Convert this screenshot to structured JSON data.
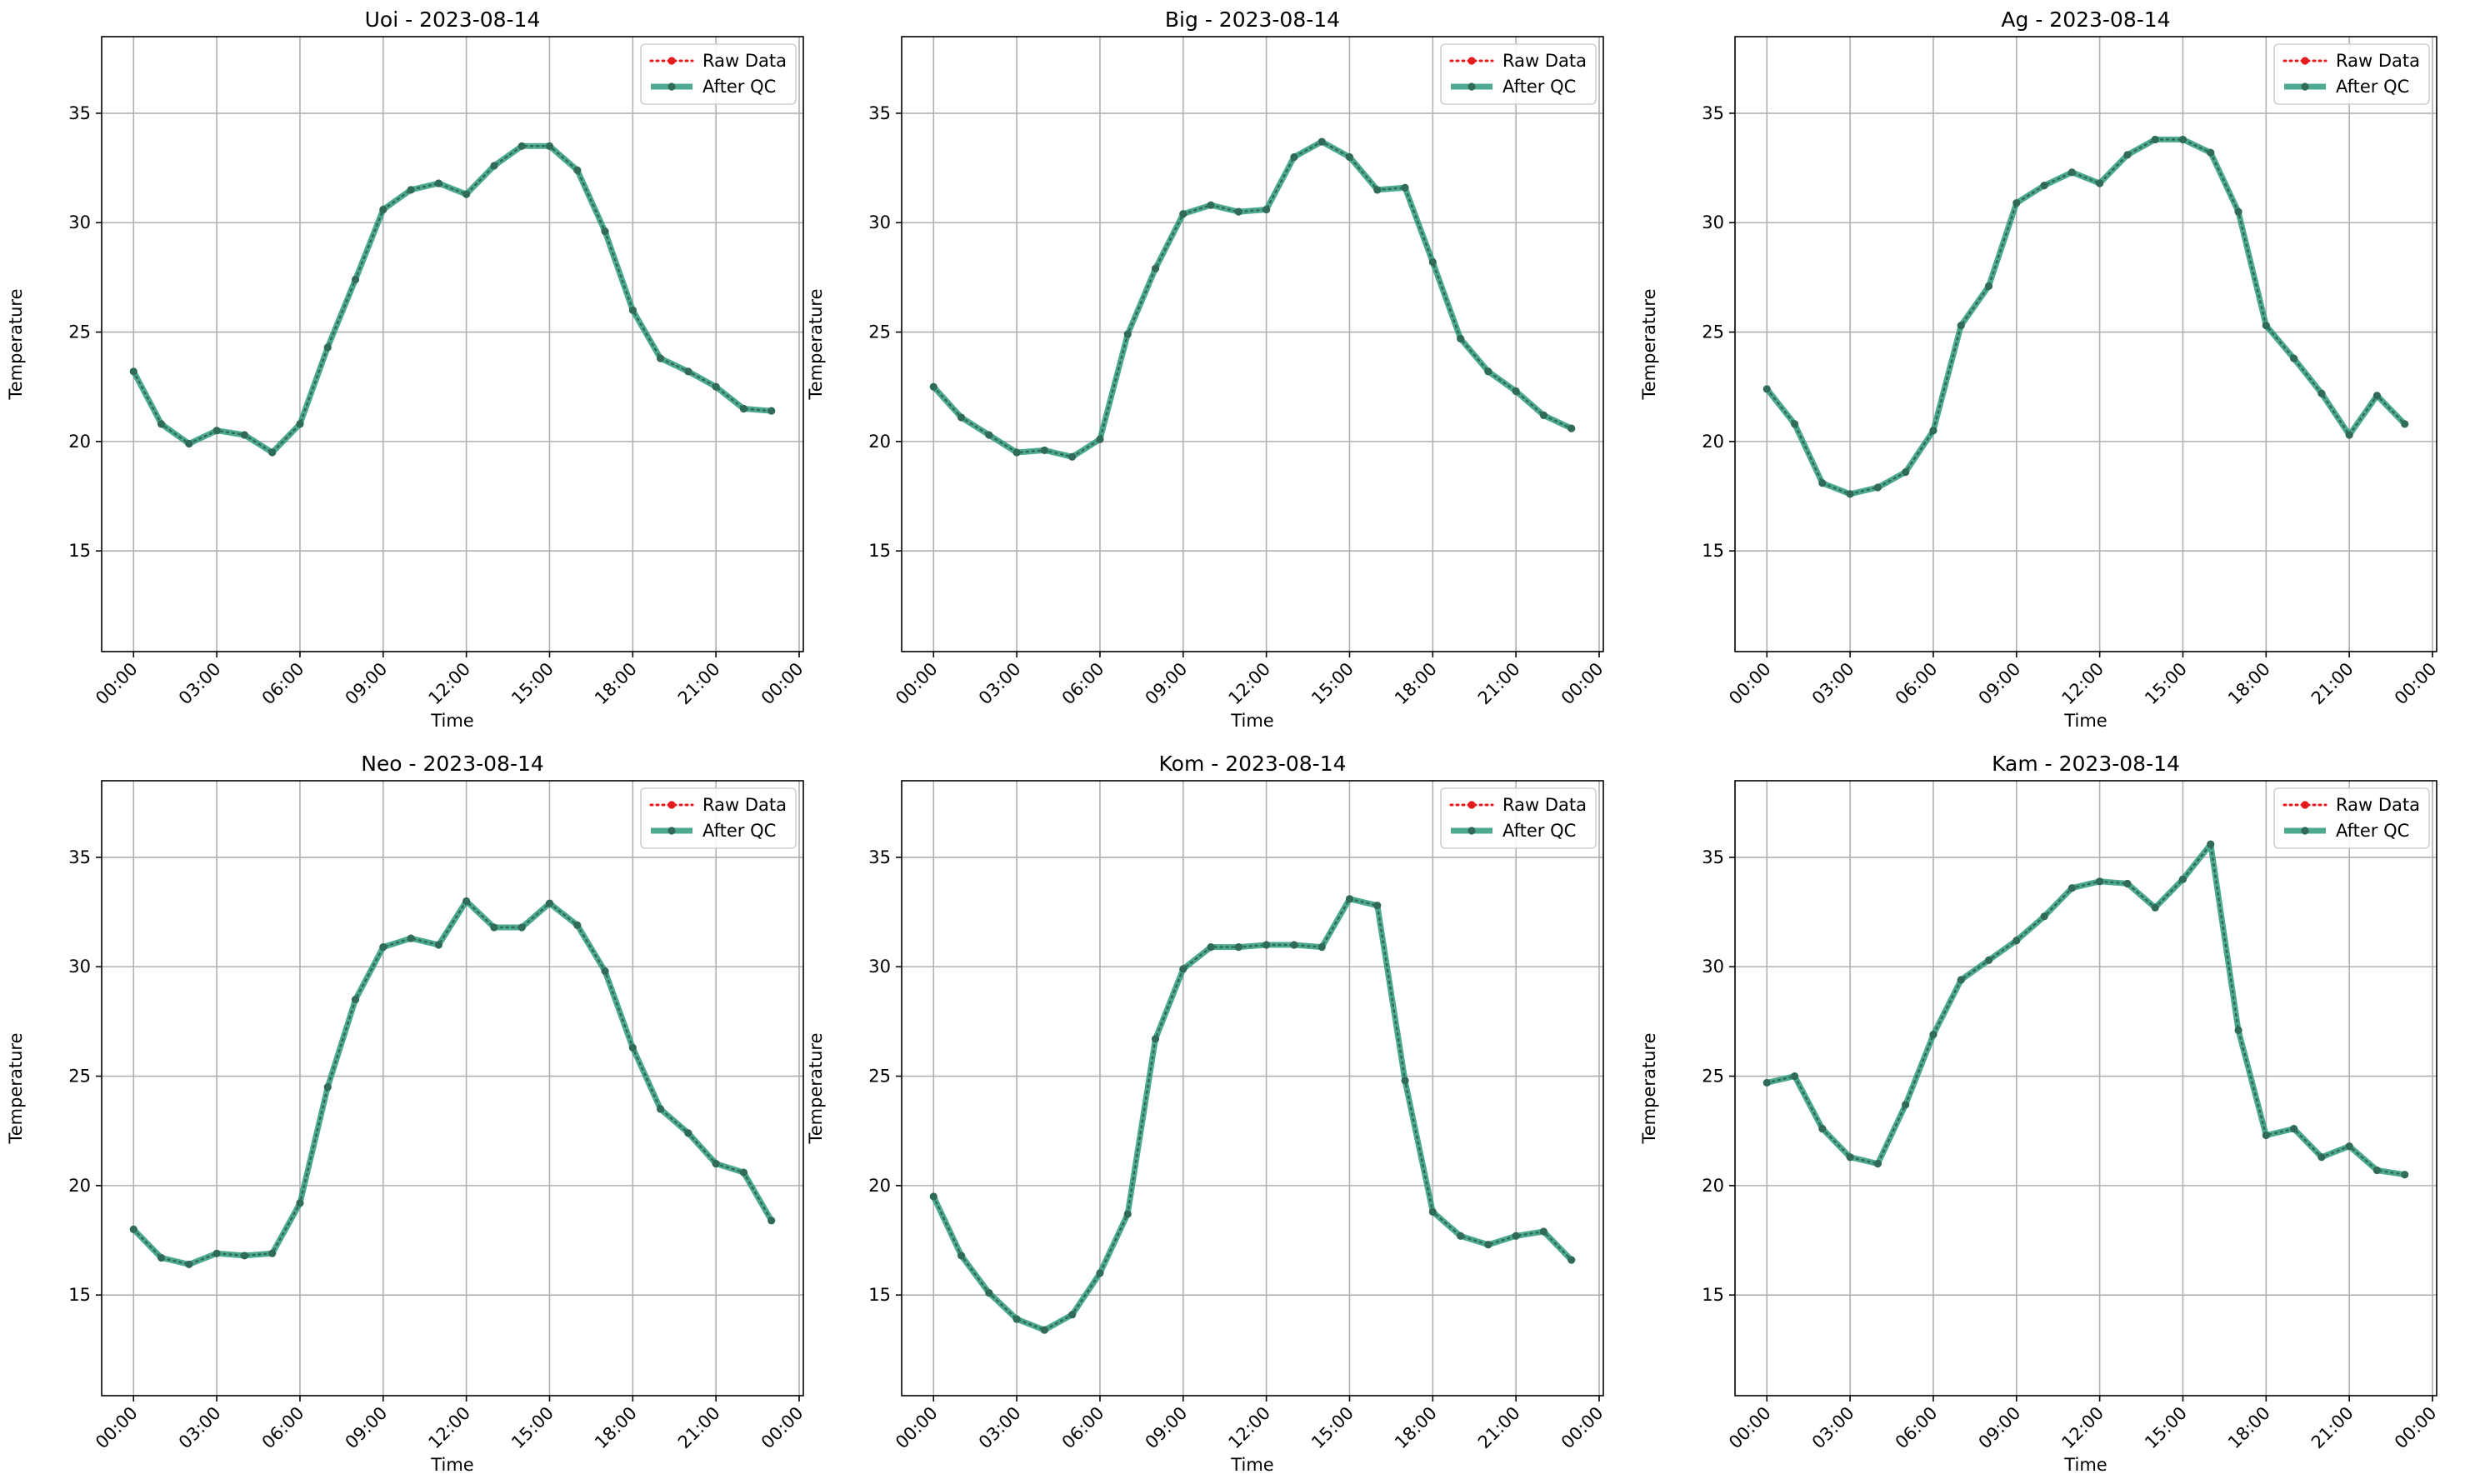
{
  "figure": {
    "background": "#ffffff"
  },
  "legend_labels": {
    "raw": "Raw Data",
    "qc": "After QC"
  },
  "colors": {
    "raw": "#e41a1c",
    "qc": "#2e9b7c",
    "marker": "#2f6b58",
    "grid": "#b0b0b0",
    "axis": "#000000"
  },
  "chart_data": [
    {
      "type": "line",
      "title": "Uoi - 2023-08-14",
      "xlabel": "Time",
      "ylabel": "Temperature",
      "x_ticks": [
        "00:00",
        "03:00",
        "06:00",
        "09:00",
        "12:00",
        "15:00",
        "18:00",
        "21:00",
        "00:00"
      ],
      "y_ticks": [
        15,
        20,
        25,
        30,
        35
      ],
      "xlim_hours": [
        -1.15,
        24.15
      ],
      "ylim": [
        10.4,
        38.5
      ],
      "grid": true,
      "legend": "top-right",
      "x_hours": [
        0,
        1,
        2,
        3,
        4,
        5,
        6,
        7,
        8,
        9,
        10,
        11,
        12,
        13,
        14,
        15,
        16,
        17,
        18,
        19,
        20,
        21,
        22,
        23
      ],
      "series": [
        {
          "name": "Raw Data",
          "values": [
            23.2,
            20.8,
            19.9,
            20.5,
            20.3,
            19.5,
            20.8,
            24.3,
            27.4,
            30.6,
            31.5,
            31.8,
            31.3,
            32.6,
            33.5,
            33.5,
            32.4,
            29.6,
            26.0,
            23.8,
            23.2,
            22.5,
            21.5,
            21.4
          ]
        },
        {
          "name": "After QC",
          "values": [
            23.2,
            20.8,
            19.9,
            20.5,
            20.3,
            19.5,
            20.8,
            24.3,
            27.4,
            30.6,
            31.5,
            31.8,
            31.3,
            32.6,
            33.5,
            33.5,
            32.4,
            29.6,
            26.0,
            23.8,
            23.2,
            22.5,
            21.5,
            21.4
          ]
        }
      ]
    },
    {
      "type": "line",
      "title": "Big - 2023-08-14",
      "xlabel": "Time",
      "ylabel": "Temperature",
      "x_ticks": [
        "00:00",
        "03:00",
        "06:00",
        "09:00",
        "12:00",
        "15:00",
        "18:00",
        "21:00",
        "00:00"
      ],
      "y_ticks": [
        15,
        20,
        25,
        30,
        35
      ],
      "xlim_hours": [
        -1.15,
        24.15
      ],
      "ylim": [
        10.4,
        38.5
      ],
      "grid": true,
      "legend": "top-right",
      "x_hours": [
        0,
        1,
        2,
        3,
        4,
        5,
        6,
        7,
        8,
        9,
        10,
        11,
        12,
        13,
        14,
        15,
        16,
        17,
        18,
        19,
        20,
        21,
        22,
        23
      ],
      "series": [
        {
          "name": "Raw Data",
          "values": [
            22.5,
            21.1,
            20.3,
            19.5,
            19.6,
            19.3,
            20.1,
            24.9,
            27.9,
            30.4,
            30.8,
            30.5,
            30.6,
            33.0,
            33.7,
            33.0,
            31.5,
            31.6,
            28.2,
            24.7,
            23.2,
            22.3,
            21.2,
            20.6
          ]
        },
        {
          "name": "After QC",
          "values": [
            22.5,
            21.1,
            20.3,
            19.5,
            19.6,
            19.3,
            20.1,
            24.9,
            27.9,
            30.4,
            30.8,
            30.5,
            30.6,
            33.0,
            33.7,
            33.0,
            31.5,
            31.6,
            28.2,
            24.7,
            23.2,
            22.3,
            21.2,
            20.6
          ]
        }
      ]
    },
    {
      "type": "line",
      "title": "Ag - 2023-08-14",
      "xlabel": "Time",
      "ylabel": "Temperature",
      "x_ticks": [
        "00:00",
        "03:00",
        "06:00",
        "09:00",
        "12:00",
        "15:00",
        "18:00",
        "21:00",
        "00:00"
      ],
      "y_ticks": [
        15,
        20,
        25,
        30,
        35
      ],
      "xlim_hours": [
        -1.15,
        24.15
      ],
      "ylim": [
        10.4,
        38.5
      ],
      "grid": true,
      "legend": "top-right",
      "x_hours": [
        0,
        1,
        2,
        3,
        4,
        5,
        6,
        7,
        8,
        9,
        10,
        11,
        12,
        13,
        14,
        15,
        16,
        17,
        18,
        19,
        20,
        21,
        22,
        23
      ],
      "series": [
        {
          "name": "Raw Data",
          "values": [
            22.4,
            20.8,
            18.1,
            17.6,
            17.9,
            18.6,
            20.5,
            25.3,
            27.1,
            30.9,
            31.7,
            32.3,
            31.8,
            33.1,
            33.8,
            33.8,
            33.2,
            30.5,
            25.3,
            23.8,
            22.2,
            20.3,
            22.1,
            20.8
          ]
        },
        {
          "name": "After QC",
          "values": [
            22.4,
            20.8,
            18.1,
            17.6,
            17.9,
            18.6,
            20.5,
            25.3,
            27.1,
            30.9,
            31.7,
            32.3,
            31.8,
            33.1,
            33.8,
            33.8,
            33.2,
            30.5,
            25.3,
            23.8,
            22.2,
            20.3,
            22.1,
            20.8
          ]
        }
      ]
    },
    {
      "type": "line",
      "title": "Neo - 2023-08-14",
      "xlabel": "Time",
      "ylabel": "Temperature",
      "x_ticks": [
        "00:00",
        "03:00",
        "06:00",
        "09:00",
        "12:00",
        "15:00",
        "18:00",
        "21:00",
        "00:00"
      ],
      "y_ticks": [
        15,
        20,
        25,
        30,
        35
      ],
      "xlim_hours": [
        -1.15,
        24.15
      ],
      "ylim": [
        10.4,
        38.5
      ],
      "grid": true,
      "legend": "top-right",
      "x_hours": [
        0,
        1,
        2,
        3,
        4,
        5,
        6,
        7,
        8,
        9,
        10,
        11,
        12,
        13,
        14,
        15,
        16,
        17,
        18,
        19,
        20,
        21,
        22,
        23
      ],
      "series": [
        {
          "name": "Raw Data",
          "values": [
            18.0,
            16.7,
            16.4,
            16.9,
            16.8,
            16.9,
            19.2,
            24.5,
            28.5,
            30.9,
            31.3,
            31.0,
            33.0,
            31.8,
            31.8,
            32.9,
            31.9,
            29.8,
            26.3,
            23.5,
            22.4,
            21.0,
            20.6,
            18.4
          ]
        },
        {
          "name": "After QC",
          "values": [
            18.0,
            16.7,
            16.4,
            16.9,
            16.8,
            16.9,
            19.2,
            24.5,
            28.5,
            30.9,
            31.3,
            31.0,
            33.0,
            31.8,
            31.8,
            32.9,
            31.9,
            29.8,
            26.3,
            23.5,
            22.4,
            21.0,
            20.6,
            18.4
          ]
        }
      ]
    },
    {
      "type": "line",
      "title": "Kom - 2023-08-14",
      "xlabel": "Time",
      "ylabel": "Temperature",
      "x_ticks": [
        "00:00",
        "03:00",
        "06:00",
        "09:00",
        "12:00",
        "15:00",
        "18:00",
        "21:00",
        "00:00"
      ],
      "y_ticks": [
        15,
        20,
        25,
        30,
        35
      ],
      "xlim_hours": [
        -1.15,
        24.15
      ],
      "ylim": [
        10.4,
        38.5
      ],
      "grid": true,
      "legend": "top-right",
      "x_hours": [
        0,
        1,
        2,
        3,
        4,
        5,
        6,
        7,
        8,
        9,
        10,
        11,
        12,
        13,
        14,
        15,
        16,
        17,
        18,
        19,
        20,
        21,
        22,
        23
      ],
      "series": [
        {
          "name": "Raw Data",
          "values": [
            19.5,
            16.8,
            15.1,
            13.9,
            13.4,
            14.1,
            16.0,
            18.7,
            26.7,
            29.9,
            30.9,
            30.9,
            31.0,
            31.0,
            30.9,
            33.1,
            32.8,
            24.8,
            18.8,
            17.7,
            17.3,
            17.7,
            17.9,
            16.6
          ]
        },
        {
          "name": "After QC",
          "values": [
            19.5,
            16.8,
            15.1,
            13.9,
            13.4,
            14.1,
            16.0,
            18.7,
            26.7,
            29.9,
            30.9,
            30.9,
            31.0,
            31.0,
            30.9,
            33.1,
            32.8,
            24.8,
            18.8,
            17.7,
            17.3,
            17.7,
            17.9,
            16.6
          ]
        }
      ]
    },
    {
      "type": "line",
      "title": "Kam - 2023-08-14",
      "xlabel": "Time",
      "ylabel": "Temperature",
      "x_ticks": [
        "00:00",
        "03:00",
        "06:00",
        "09:00",
        "12:00",
        "15:00",
        "18:00",
        "21:00",
        "00:00"
      ],
      "y_ticks": [
        15,
        20,
        25,
        30,
        35
      ],
      "xlim_hours": [
        -1.15,
        24.15
      ],
      "ylim": [
        10.4,
        38.5
      ],
      "grid": true,
      "legend": "top-right",
      "x_hours": [
        0,
        1,
        2,
        3,
        4,
        5,
        6,
        7,
        8,
        9,
        10,
        11,
        12,
        13,
        14,
        15,
        16,
        17,
        18,
        19,
        20,
        21,
        22,
        23
      ],
      "series": [
        {
          "name": "Raw Data",
          "values": [
            24.7,
            25.0,
            22.6,
            21.3,
            21.0,
            23.7,
            26.9,
            29.4,
            30.3,
            31.2,
            32.3,
            33.6,
            33.9,
            33.8,
            32.7,
            34.0,
            35.6,
            27.1,
            22.3,
            22.6,
            21.3,
            21.8,
            20.7,
            20.5
          ]
        },
        {
          "name": "After QC",
          "values": [
            24.7,
            25.0,
            22.6,
            21.3,
            21.0,
            23.7,
            26.9,
            29.4,
            30.3,
            31.2,
            32.3,
            33.6,
            33.9,
            33.8,
            32.7,
            34.0,
            35.6,
            27.1,
            22.3,
            22.6,
            21.3,
            21.8,
            20.7,
            20.5
          ]
        }
      ]
    }
  ]
}
